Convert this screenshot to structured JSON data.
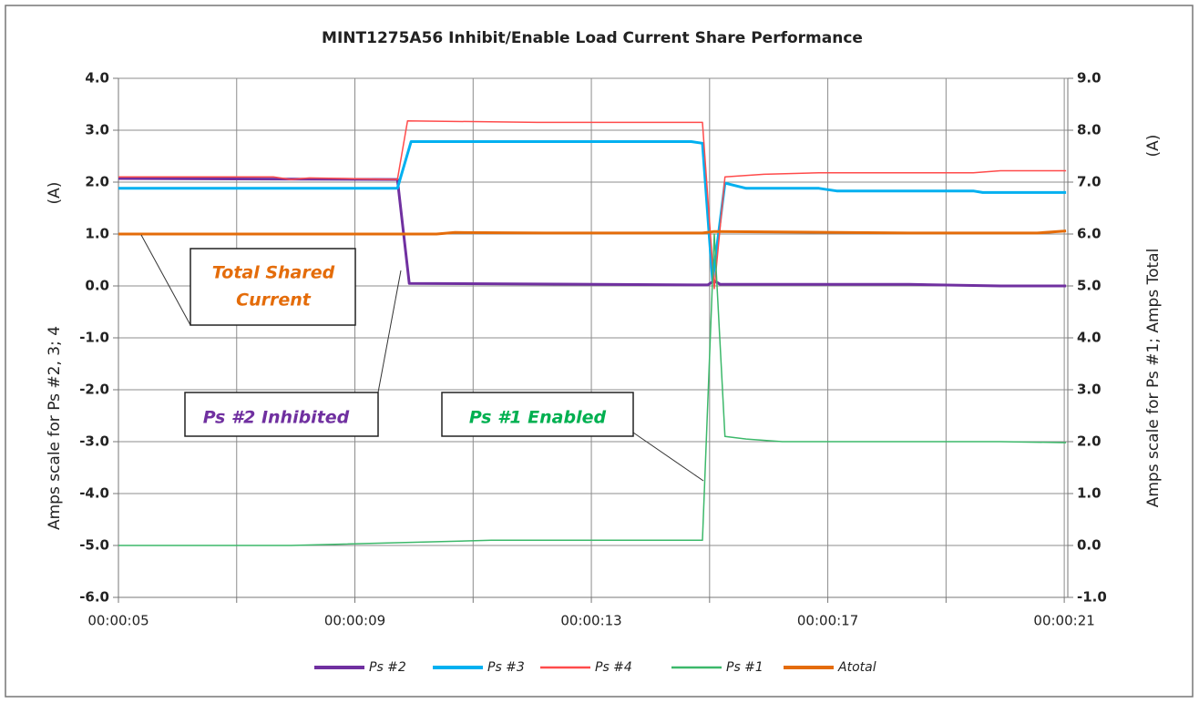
{
  "chart_data": {
    "type": "line",
    "title": "MINT1275A56  Inhibit/Enable Load Current  Share  Performance",
    "y_label": "Amps  scale for Ps #2, 3; 4",
    "y_unit": "(A)",
    "y2_label": "Amps  scale for Ps #1; Amps Total",
    "y2_unit": "(A)",
    "xlim": [
      5,
      21.06
    ],
    "xticks": [
      {
        "value": 5,
        "label": "00:00:05"
      },
      {
        "value": 9,
        "label": "00:00:09"
      },
      {
        "value": 13,
        "label": "00:00:13"
      },
      {
        "value": 17,
        "label": "00:00:17"
      },
      {
        "value": 21,
        "label": "00:00:21"
      }
    ],
    "xgrid": [
      5,
      7,
      9,
      11,
      13,
      15,
      17,
      19,
      21
    ],
    "ylim": [
      -6,
      4
    ],
    "yticks": [
      {
        "value": 4,
        "label": "4.0"
      },
      {
        "value": 3,
        "label": "3.0"
      },
      {
        "value": 2,
        "label": "2.0"
      },
      {
        "value": 1,
        "label": "1.0"
      },
      {
        "value": 0,
        "label": "0.0"
      },
      {
        "value": -1,
        "label": "-1.0"
      },
      {
        "value": -2,
        "label": "-2.0"
      },
      {
        "value": -3,
        "label": "-3.0"
      },
      {
        "value": -4,
        "label": "-4.0"
      },
      {
        "value": -5,
        "label": "-5.0"
      },
      {
        "value": -6,
        "label": "-6.0"
      }
    ],
    "y2lim": [
      -1,
      9
    ],
    "y2ticks": [
      {
        "value": 9,
        "label": "9.0"
      },
      {
        "value": 8,
        "label": "8.0"
      },
      {
        "value": 7,
        "label": "7.0"
      },
      {
        "value": 6,
        "label": "6.0"
      },
      {
        "value": 5,
        "label": "5.0"
      },
      {
        "value": 4,
        "label": "4.0"
      },
      {
        "value": 3,
        "label": "3.0"
      },
      {
        "value": 2,
        "label": "2.0"
      },
      {
        "value": 1,
        "label": "1.0"
      },
      {
        "value": 0,
        "label": "0.0"
      },
      {
        "value": -1,
        "label": "-1.0"
      }
    ],
    "grid": true,
    "legend": "bottom",
    "series": [
      {
        "name": "Ps #2",
        "color": "#7030a0",
        "width": 3,
        "x": [
          5,
          9.72,
          9.92,
          14.97,
          15.08,
          15.18,
          18.38,
          19.92,
          21.03
        ],
        "values": [
          2.07,
          2.05,
          0.05,
          0.02,
          0.1,
          0.03,
          0.03,
          0.0,
          0.0
        ]
      },
      {
        "name": "Ps #3",
        "color": "#00b0f0",
        "width": 3,
        "x": [
          5,
          9.72,
          9.95,
          14.69,
          14.88,
          15.05,
          15.26,
          15.62,
          16.85,
          17.15,
          19.46,
          19.62,
          21.03
        ],
        "values": [
          1.88,
          1.88,
          2.78,
          2.78,
          2.75,
          0.1,
          1.98,
          1.88,
          1.88,
          1.83,
          1.83,
          1.8,
          1.8
        ]
      },
      {
        "name": "Ps #4",
        "color": "#ff4b4b",
        "width": 1.5,
        "x": [
          5,
          7.62,
          7.92,
          8.23,
          9.72,
          9.89,
          12.08,
          14.88,
          15.08,
          15.26,
          15.92,
          16.85,
          19.46,
          19.92,
          21.03
        ],
        "values": [
          2.1,
          2.1,
          2.05,
          2.08,
          2.05,
          3.18,
          3.15,
          3.15,
          -0.05,
          2.1,
          2.15,
          2.18,
          2.18,
          2.22,
          2.22
        ]
      },
      {
        "name": "Ps #1",
        "color": "#3cb86a",
        "width": 1.5,
        "axis": "y2",
        "x": [
          5,
          7.92,
          11.31,
          14.88,
          15.08,
          15.26,
          15.62,
          16.23,
          19.92,
          21.03
        ],
        "values": [
          0.0,
          0.0,
          0.1,
          0.1,
          6.0,
          2.1,
          2.05,
          2.0,
          2.0,
          1.98
        ]
      },
      {
        "name": "Atotal",
        "color": "#e46c0a",
        "width": 3,
        "axis": "y2",
        "x": [
          5,
          10.38,
          10.69,
          12.23,
          13.77,
          14.88,
          15.08,
          18.38,
          20.54,
          21.03
        ],
        "values": [
          6.0,
          6.0,
          6.03,
          6.02,
          6.02,
          6.02,
          6.05,
          6.02,
          6.02,
          6.06
        ]
      }
    ],
    "annotations": [
      {
        "lines": [
          "Total Shared",
          "Current"
        ],
        "color": "#e46c0a"
      },
      {
        "lines": [
          "Ps #2  Inhibited"
        ],
        "color": "#7030a0"
      },
      {
        "lines": [
          "Ps #1  Enabled"
        ],
        "color": "#00b050"
      }
    ]
  }
}
